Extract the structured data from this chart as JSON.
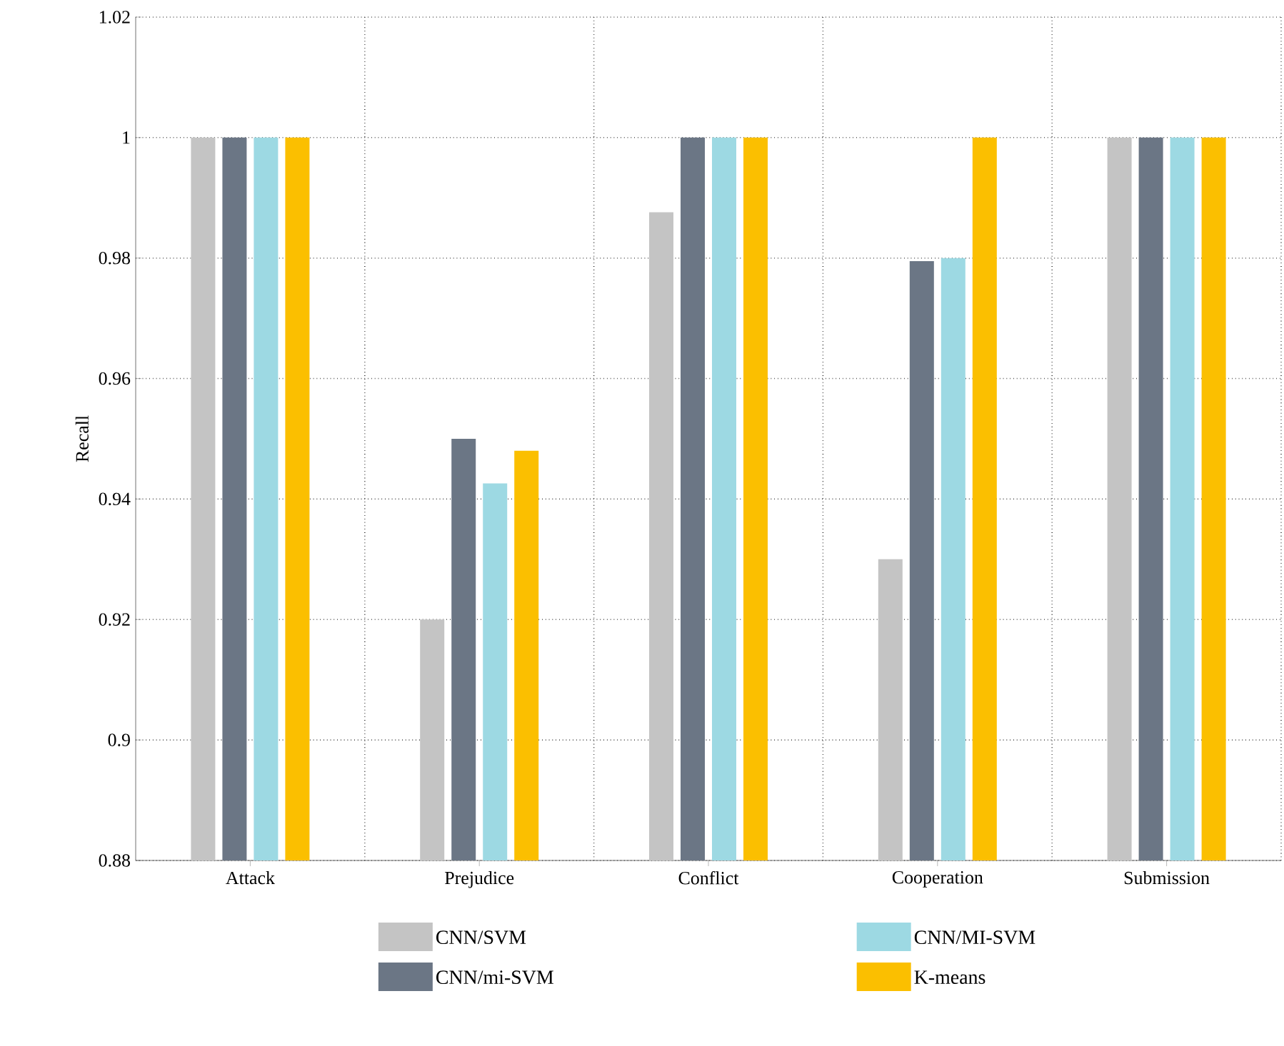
{
  "chart_data": {
    "type": "bar",
    "ylabel": "Recall",
    "categories": [
      "Attack",
      "Prejudice",
      "Conflict",
      "Cooperation",
      "Submission"
    ],
    "series": [
      {
        "name": "CNN/SVM",
        "color": "#c4c4c4",
        "values": [
          1,
          0.92,
          0.9876,
          0.93,
          1
        ]
      },
      {
        "name": "CNN/mi-SVM",
        "color": "#6b7685",
        "values": [
          1,
          0.95,
          1,
          0.9795,
          1
        ]
      },
      {
        "name": "CNN/MI-SVM",
        "color": "#9dd9e3",
        "values": [
          1,
          0.9426,
          1,
          0.98,
          1
        ]
      },
      {
        "name": "K-means",
        "color": "#fbbf00",
        "values": [
          1,
          0.948,
          1,
          1,
          1
        ]
      }
    ],
    "ylim": [
      0.88,
      1.02
    ],
    "yticks": [
      0.88,
      0.9,
      0.92,
      0.94,
      0.96,
      0.98,
      1,
      1.02
    ],
    "grid": true,
    "legend": "bottom"
  }
}
